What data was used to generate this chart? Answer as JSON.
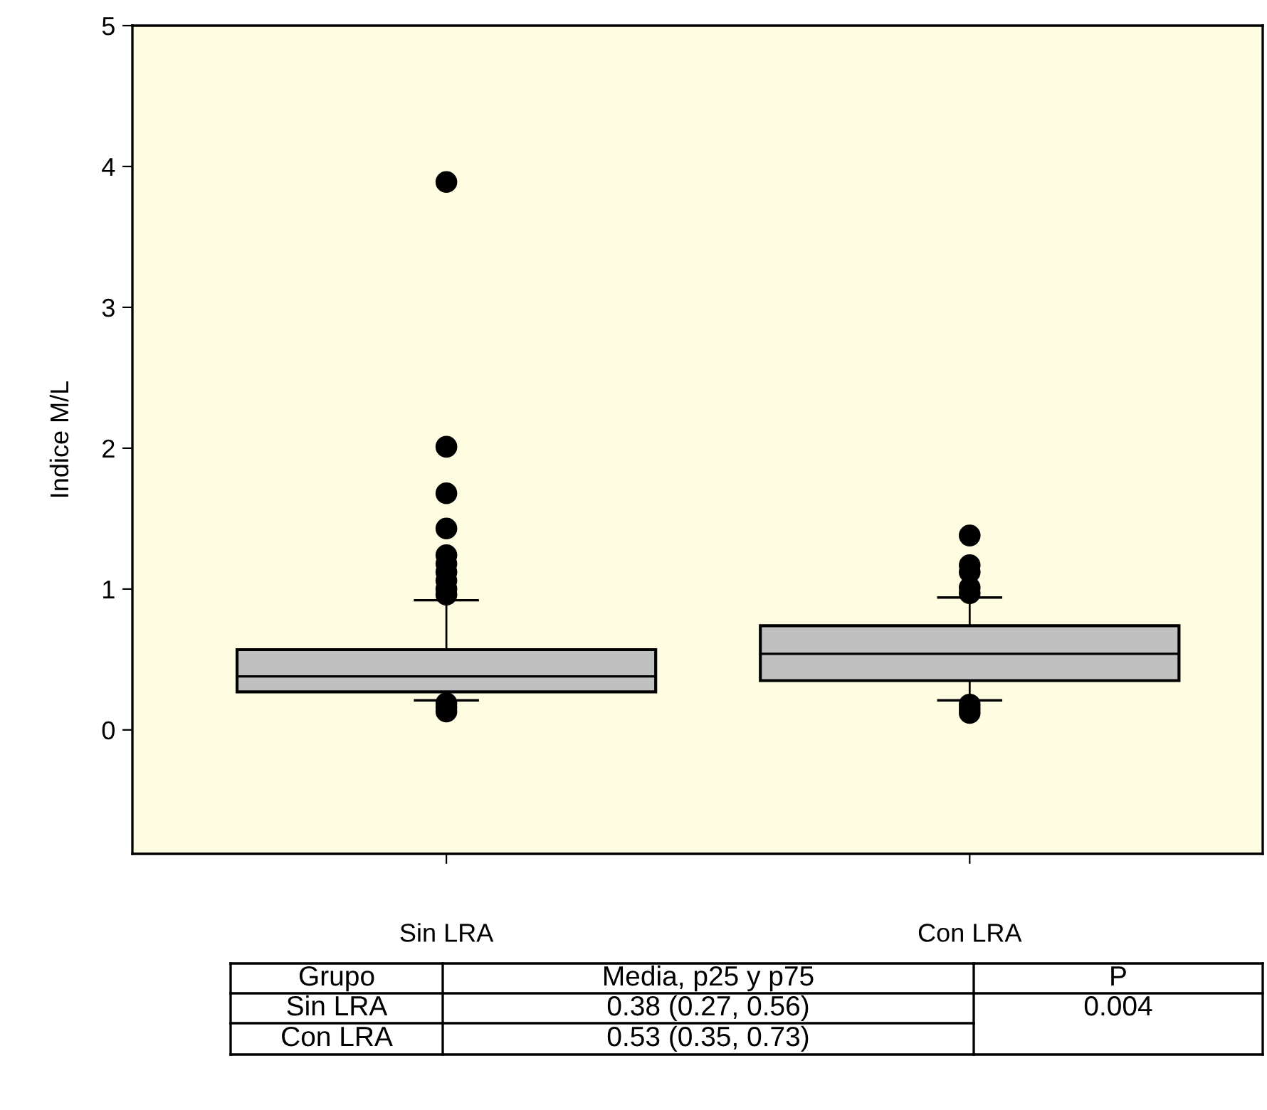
{
  "chart_data": {
    "type": "box",
    "ylabel": "Indice M/L",
    "categories": [
      "Sin LRA",
      "Con LRA"
    ],
    "boxes": [
      {
        "low": 0.21,
        "q1": 0.27,
        "median": 0.38,
        "q3": 0.57,
        "high": 0.92,
        "outliers": [
          3.89,
          2.01,
          1.68,
          1.43,
          1.24,
          1.18,
          1.12,
          1.06,
          1.0,
          0.96,
          0.19,
          0.16,
          0.13
        ]
      },
      {
        "low": 0.21,
        "q1": 0.35,
        "median": 0.54,
        "q3": 0.74,
        "high": 0.94,
        "outliers": [
          1.38,
          1.17,
          1.12,
          1.01,
          0.97,
          0.18,
          0.15,
          0.12
        ]
      }
    ],
    "color": "#c0c0c0",
    "ylim": [
      -0.88,
      5
    ],
    "yticks": [
      0,
      1,
      2,
      3,
      4,
      5
    ],
    "grid": false,
    "annotations": [
      "Grupo",
      "Media, p25 y p75",
      "P",
      "Sin LRA",
      "0.38 (0.27, 0.56)",
      "0.004",
      "Con LRA",
      "0.53 (0.35, 0.73)"
    ]
  }
}
